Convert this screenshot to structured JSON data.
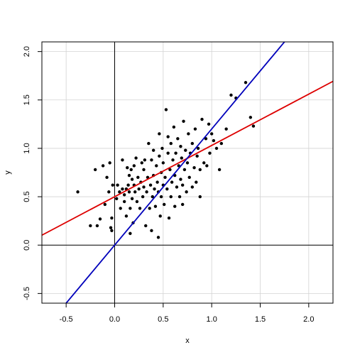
{
  "chart_data": {
    "type": "scatter",
    "title": "",
    "xlabel": "x",
    "ylabel": "y",
    "xlim": [
      -0.75,
      2.25
    ],
    "ylim": [
      -0.6,
      2.1
    ],
    "x_ticks": [
      -0.5,
      0.0,
      0.5,
      1.0,
      1.5,
      2.0
    ],
    "x_tick_labels": [
      "-0.5",
      "0.0",
      "0.5",
      "1.0",
      "1.5",
      "2.0"
    ],
    "y_ticks": [
      -0.5,
      0.0,
      0.5,
      1.0,
      1.5,
      2.0
    ],
    "y_tick_labels": [
      "-0.5",
      "0.0",
      "0.5",
      "1.0",
      "1.5",
      "2.0"
    ],
    "grid": true,
    "reference_lines": {
      "x": 0,
      "y": 0
    },
    "point_color": "#000000",
    "fit_lines": [
      {
        "intercept": 0.5,
        "slope": 0.53,
        "color": "#dd0000"
      },
      {
        "intercept": 0.0,
        "slope": 1.2,
        "color": "#0000bb"
      }
    ],
    "points": [
      [
        -0.38,
        0.55
      ],
      [
        -0.25,
        0.2
      ],
      [
        -0.2,
        0.78
      ],
      [
        -0.18,
        0.2
      ],
      [
        -0.15,
        0.27
      ],
      [
        -0.12,
        0.82
      ],
      [
        -0.1,
        0.42
      ],
      [
        -0.08,
        0.7
      ],
      [
        -0.06,
        0.55
      ],
      [
        -0.05,
        0.85
      ],
      [
        -0.04,
        0.18
      ],
      [
        -0.03,
        0.15
      ],
      [
        -0.03,
        0.28
      ],
      [
        -0.02,
        0.62
      ],
      [
        0.02,
        0.48
      ],
      [
        0.03,
        0.62
      ],
      [
        0.05,
        0.55
      ],
      [
        0.06,
        0.38
      ],
      [
        0.08,
        0.58
      ],
      [
        0.08,
        0.88
      ],
      [
        0.1,
        0.52
      ],
      [
        0.1,
        0.45
      ],
      [
        0.12,
        0.58
      ],
      [
        0.12,
        0.3
      ],
      [
        0.13,
        0.8
      ],
      [
        0.14,
        0.62
      ],
      [
        0.15,
        0.72
      ],
      [
        0.15,
        0.55
      ],
      [
        0.16,
        0.38
      ],
      [
        0.16,
        0.12
      ],
      [
        0.17,
        0.78
      ],
      [
        0.18,
        0.48
      ],
      [
        0.18,
        0.68
      ],
      [
        0.19,
        0.23
      ],
      [
        0.2,
        0.62
      ],
      [
        0.2,
        0.82
      ],
      [
        0.21,
        0.55
      ],
      [
        0.22,
        0.9
      ],
      [
        0.23,
        0.45
      ],
      [
        0.24,
        0.7
      ],
      [
        0.25,
        0.58
      ],
      [
        0.26,
        0.38
      ],
      [
        0.27,
        0.65
      ],
      [
        0.28,
        0.85
      ],
      [
        0.29,
        0.5
      ],
      [
        0.3,
        0.6
      ],
      [
        0.3,
        0.78
      ],
      [
        0.31,
        0.88
      ],
      [
        0.32,
        0.2
      ],
      [
        0.33,
        0.55
      ],
      [
        0.34,
        0.7
      ],
      [
        0.35,
        1.05
      ],
      [
        0.36,
        0.38
      ],
      [
        0.37,
        0.62
      ],
      [
        0.38,
        0.88
      ],
      [
        0.38,
        0.15
      ],
      [
        0.39,
        0.5
      ],
      [
        0.4,
        0.72
      ],
      [
        0.4,
        0.98
      ],
      [
        0.41,
        0.58
      ],
      [
        0.42,
        0.4
      ],
      [
        0.43,
        0.82
      ],
      [
        0.44,
        0.65
      ],
      [
        0.45,
        0.08
      ],
      [
        0.45,
        0.55
      ],
      [
        0.46,
        0.92
      ],
      [
        0.46,
        1.15
      ],
      [
        0.47,
        0.3
      ],
      [
        0.48,
        0.75
      ],
      [
        0.48,
        0.5
      ],
      [
        0.49,
        1.0
      ],
      [
        0.5,
        0.62
      ],
      [
        0.5,
        0.85
      ],
      [
        0.51,
        0.42
      ],
      [
        0.52,
        0.7
      ],
      [
        0.53,
        1.4
      ],
      [
        0.54,
        0.58
      ],
      [
        0.55,
        0.95
      ],
      [
        0.55,
        1.12
      ],
      [
        0.56,
        0.28
      ],
      [
        0.57,
        0.78
      ],
      [
        0.58,
        0.5
      ],
      [
        0.58,
        1.05
      ],
      [
        0.59,
        0.65
      ],
      [
        0.6,
        0.88
      ],
      [
        0.61,
        1.22
      ],
      [
        0.62,
        0.4
      ],
      [
        0.62,
        0.72
      ],
      [
        0.63,
        0.95
      ],
      [
        0.64,
        0.6
      ],
      [
        0.65,
        1.1
      ],
      [
        0.66,
        0.82
      ],
      [
        0.67,
        0.5
      ],
      [
        0.68,
        0.68
      ],
      [
        0.68,
        1.02
      ],
      [
        0.69,
        0.9
      ],
      [
        0.7,
        0.62
      ],
      [
        0.7,
        0.42
      ],
      [
        0.71,
        1.28
      ],
      [
        0.72,
        0.78
      ],
      [
        0.73,
        0.98
      ],
      [
        0.74,
        0.55
      ],
      [
        0.75,
        0.85
      ],
      [
        0.76,
        1.15
      ],
      [
        0.77,
        0.7
      ],
      [
        0.78,
        0.95
      ],
      [
        0.8,
        0.6
      ],
      [
        0.8,
        1.05
      ],
      [
        0.82,
        0.8
      ],
      [
        0.83,
        1.2
      ],
      [
        0.84,
        0.65
      ],
      [
        0.85,
        0.92
      ],
      [
        0.86,
        1.0
      ],
      [
        0.88,
        0.5
      ],
      [
        0.88,
        0.78
      ],
      [
        0.9,
        1.3
      ],
      [
        0.92,
        0.85
      ],
      [
        0.94,
        1.1
      ],
      [
        0.95,
        0.82
      ],
      [
        0.97,
        1.25
      ],
      [
        0.98,
        0.95
      ],
      [
        1.0,
        1.15
      ],
      [
        1.02,
        1.08
      ],
      [
        1.05,
        1.0
      ],
      [
        1.08,
        0.78
      ],
      [
        1.1,
        1.05
      ],
      [
        1.15,
        1.2
      ],
      [
        1.2,
        1.55
      ],
      [
        1.25,
        1.52
      ],
      [
        1.35,
        1.68
      ],
      [
        1.4,
        1.32
      ],
      [
        1.43,
        1.23
      ]
    ]
  }
}
